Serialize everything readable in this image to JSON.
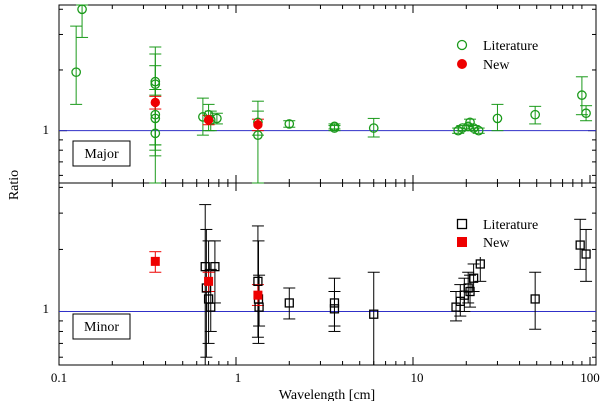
{
  "chart_data": {
    "type": "scatter",
    "x_axis": {
      "label": "Wavelength [cm]",
      "scale": "log",
      "range": [
        0.1,
        100
      ],
      "ticks": [
        {
          "value": 0.1,
          "label": "0.1"
        },
        {
          "value": 1,
          "label": "1"
        },
        {
          "value": 10,
          "label": "10"
        },
        {
          "value": 100,
          "label": "100"
        }
      ]
    },
    "y_axis": {
      "label": "Ratio",
      "scale": "log",
      "reference_line": 1,
      "ticks": [
        {
          "value": 1,
          "label": "1"
        }
      ]
    },
    "colors": {
      "major_literature": "#1a9a1a",
      "major_new": "#ee0000",
      "minor_literature": "#000000",
      "minor_new": "#ee0000",
      "reference_line": "#3030c8",
      "axes": "#000000"
    },
    "panels": [
      {
        "name": "major",
        "label": "Major",
        "y_range": [
          0.55,
          4.2
        ],
        "legend": [
          {
            "text": "Literature",
            "marker": "open-circle"
          },
          {
            "text": "New",
            "marker": "filled-circle"
          }
        ],
        "series": [
          {
            "name": "Literature",
            "marker": "open-circle",
            "points": [
              {
                "x": 0.125,
                "y": 1.95,
                "lo": 1.35,
                "hi": 3.3
              },
              {
                "x": 0.135,
                "y": 4.0,
                "lo": 2.9,
                "hi": 4.2
              },
              {
                "x": 0.35,
                "y": 1.75,
                "lo": 0.8,
                "hi": 2.6
              },
              {
                "x": 0.35,
                "y": 1.7,
                "lo": 0.85,
                "hi": 2.4
              },
              {
                "x": 0.35,
                "y": 1.2,
                "lo": 0.75,
                "hi": 2.1
              },
              {
                "x": 0.35,
                "y": 1.15,
                "lo": 0.85,
                "hi": 1.6
              },
              {
                "x": 0.35,
                "y": 0.97,
                "lo": 0.55,
                "hi": 1.5
              },
              {
                "x": 0.65,
                "y": 1.17,
                "lo": 0.95,
                "hi": 1.45
              },
              {
                "x": 0.7,
                "y": 1.2,
                "lo": 1.0,
                "hi": 1.35
              },
              {
                "x": 0.72,
                "y": 1.13,
                "lo": 1.0,
                "hi": 1.25
              },
              {
                "x": 0.78,
                "y": 1.15,
                "lo": 1.08,
                "hi": 1.22
              },
              {
                "x": 1.33,
                "y": 0.95,
                "lo": 0.55,
                "hi": 1.4
              },
              {
                "x": 1.33,
                "y": 1.1,
                "lo": 0.95,
                "hi": 1.25
              },
              {
                "x": 2.0,
                "y": 1.08,
                "lo": 1.04,
                "hi": 1.12
              },
              {
                "x": 3.6,
                "y": 1.03,
                "lo": 1.0,
                "hi": 1.06
              },
              {
                "x": 3.6,
                "y": 1.05,
                "lo": 1.02,
                "hi": 1.08
              },
              {
                "x": 6.0,
                "y": 1.03,
                "lo": 0.93,
                "hi": 1.15
              },
              {
                "x": 18.0,
                "y": 1.0,
                "lo": 0.97,
                "hi": 1.03
              },
              {
                "x": 19.0,
                "y": 1.03,
                "lo": 1.0,
                "hi": 1.06
              },
              {
                "x": 20.5,
                "y": 1.05,
                "lo": 1.02,
                "hi": 1.08
              },
              {
                "x": 21.0,
                "y": 1.1,
                "lo": 1.06,
                "hi": 1.14
              },
              {
                "x": 22.0,
                "y": 1.03,
                "lo": 1.0,
                "hi": 1.06
              },
              {
                "x": 23.5,
                "y": 1.0,
                "lo": 0.97,
                "hi": 1.03
              },
              {
                "x": 30.0,
                "y": 1.15,
                "lo": 1.0,
                "hi": 1.35
              },
              {
                "x": 49.0,
                "y": 1.2,
                "lo": 1.08,
                "hi": 1.32
              },
              {
                "x": 90.0,
                "y": 1.5,
                "lo": 1.2,
                "hi": 1.85
              },
              {
                "x": 95.0,
                "y": 1.22,
                "lo": 1.12,
                "hi": 1.33
              }
            ]
          },
          {
            "name": "New",
            "marker": "filled-circle",
            "points": [
              {
                "x": 0.35,
                "y": 1.38,
                "lo": 1.28,
                "hi": 1.48
              },
              {
                "x": 0.7,
                "y": 1.13,
                "lo": 1.07,
                "hi": 1.19
              },
              {
                "x": 1.33,
                "y": 1.07,
                "lo": 1.0,
                "hi": 1.14
              }
            ]
          }
        ]
      },
      {
        "name": "minor",
        "label": "Minor",
        "y_range": [
          0.55,
          4.2
        ],
        "legend": [
          {
            "text": "Literature",
            "marker": "open-square"
          },
          {
            "text": "New",
            "marker": "filled-square"
          }
        ],
        "series": [
          {
            "name": "Literature",
            "marker": "open-square",
            "points": [
              {
                "x": 0.67,
                "y": 1.65,
                "lo": 0.55,
                "hi": 3.3
              },
              {
                "x": 0.68,
                "y": 1.3,
                "lo": 0.6,
                "hi": 2.5
              },
              {
                "x": 0.7,
                "y": 1.15,
                "lo": 0.7,
                "hi": 2.2
              },
              {
                "x": 0.72,
                "y": 1.05,
                "lo": 0.8,
                "hi": 1.6
              },
              {
                "x": 0.76,
                "y": 1.65,
                "lo": 1.1,
                "hi": 2.2
              },
              {
                "x": 1.33,
                "y": 1.4,
                "lo": 0.75,
                "hi": 2.6
              },
              {
                "x": 1.34,
                "y": 1.15,
                "lo": 0.7,
                "hi": 2.2
              },
              {
                "x": 1.35,
                "y": 1.05,
                "lo": 0.85,
                "hi": 1.5
              },
              {
                "x": 2.0,
                "y": 1.1,
                "lo": 0.92,
                "hi": 1.3
              },
              {
                "x": 3.6,
                "y": 1.1,
                "lo": 0.8,
                "hi": 1.45
              },
              {
                "x": 3.6,
                "y": 1.03,
                "lo": 0.85,
                "hi": 1.25
              },
              {
                "x": 6.0,
                "y": 0.97,
                "lo": 0.55,
                "hi": 1.55
              },
              {
                "x": 17.5,
                "y": 1.05,
                "lo": 0.9,
                "hi": 1.25
              },
              {
                "x": 18.5,
                "y": 1.12,
                "lo": 0.95,
                "hi": 1.35
              },
              {
                "x": 19.5,
                "y": 1.2,
                "lo": 1.0,
                "hi": 1.45
              },
              {
                "x": 20.5,
                "y": 1.3,
                "lo": 1.1,
                "hi": 1.55
              },
              {
                "x": 21.0,
                "y": 1.25,
                "lo": 1.05,
                "hi": 1.5
              },
              {
                "x": 22.0,
                "y": 1.45,
                "lo": 1.25,
                "hi": 1.7
              },
              {
                "x": 24.0,
                "y": 1.7,
                "lo": 1.4,
                "hi": 2.0
              },
              {
                "x": 49.0,
                "y": 1.15,
                "lo": 0.82,
                "hi": 1.55
              },
              {
                "x": 88.0,
                "y": 2.1,
                "lo": 1.6,
                "hi": 2.8
              },
              {
                "x": 95.0,
                "y": 1.9,
                "lo": 1.4,
                "hi": 2.5
              }
            ]
          },
          {
            "name": "New",
            "marker": "filled-square",
            "points": [
              {
                "x": 0.35,
                "y": 1.75,
                "lo": 1.55,
                "hi": 1.95
              },
              {
                "x": 0.7,
                "y": 1.4,
                "lo": 1.25,
                "hi": 1.55
              },
              {
                "x": 1.33,
                "y": 1.2,
                "lo": 1.07,
                "hi": 1.35
              }
            ]
          }
        ]
      }
    ]
  }
}
